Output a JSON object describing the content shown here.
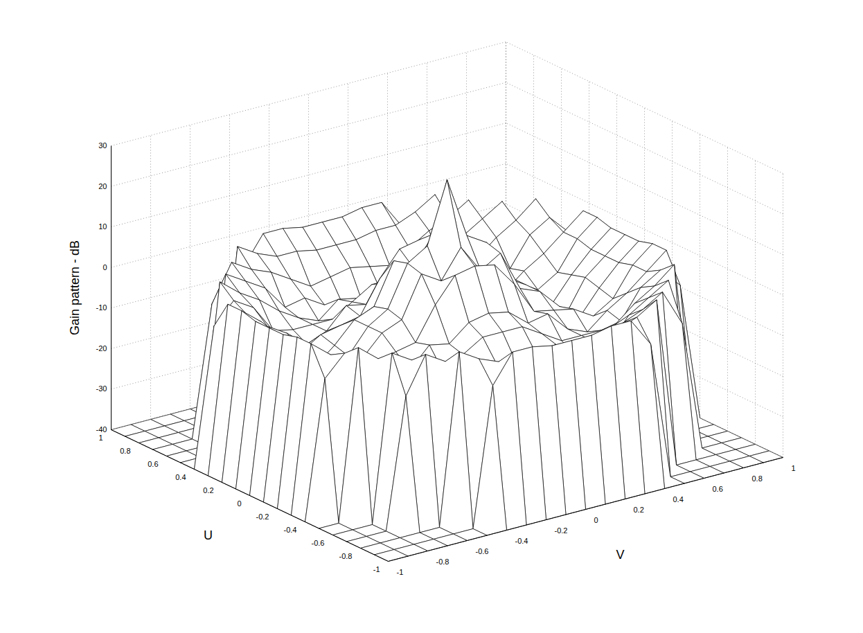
{
  "chart_data": {
    "type": "surface",
    "z_label": "Gain pattern - dB",
    "u_label": "U",
    "v_label": "V",
    "ulim": [
      -1,
      1
    ],
    "vlim": [
      -1,
      1
    ],
    "zlim": [
      -40,
      30
    ],
    "uticks": [
      -1,
      -0.8,
      -0.6,
      -0.4,
      -0.2,
      0,
      0.2,
      0.4,
      0.6,
      0.8,
      1
    ],
    "vticks": [
      -1,
      -0.8,
      -0.6,
      -0.4,
      -0.2,
      0,
      0.2,
      0.4,
      0.6,
      0.8,
      1
    ],
    "zticks": [
      -40,
      -30,
      -20,
      -10,
      0,
      10,
      20,
      30
    ],
    "grid": true,
    "color": "#000000",
    "u": [
      -1,
      -0.9,
      -0.8,
      -0.7,
      -0.6,
      -0.5,
      -0.4,
      -0.3,
      -0.2,
      -0.1,
      0,
      0.1,
      0.2,
      0.3,
      0.4,
      0.5,
      0.6,
      0.7,
      0.8,
      0.9,
      1
    ],
    "v": [
      -1,
      -0.9,
      -0.8,
      -0.7,
      -0.6,
      -0.5,
      -0.4,
      -0.3,
      -0.2,
      -0.1,
      0,
      0.1,
      0.2,
      0.3,
      0.4,
      0.5,
      0.6,
      0.7,
      0.8,
      0.9,
      1
    ],
    "gain": [
      [
        -40,
        -40,
        -40,
        -40,
        -40,
        -40,
        -40,
        -40,
        -40,
        -40,
        -40,
        -40,
        -40,
        -40,
        -40,
        -40,
        -40,
        -40,
        -40,
        -40,
        -40
      ],
      [
        -40,
        -40,
        -40,
        -40,
        -40,
        -40,
        -6,
        1,
        1,
        0,
        0,
        0,
        1,
        1,
        -6,
        -40,
        -40,
        -40,
        -40,
        -40,
        -40
      ],
      [
        -40,
        -40,
        -40,
        -40,
        -40,
        2,
        -1,
        -3,
        -3,
        -4,
        -4,
        -4,
        -3,
        -3,
        -1,
        2,
        -40,
        -40,
        -40,
        -40,
        -40
      ],
      [
        -40,
        -40,
        -40,
        -8,
        1,
        -2,
        -4,
        -7,
        -10,
        -9,
        -8,
        -9,
        -10,
        -7,
        -4,
        -2,
        1,
        -8,
        -40,
        -40,
        -40
      ],
      [
        -40,
        -40,
        -40,
        1,
        -2,
        -5,
        -11,
        -10,
        -13,
        -15,
        -16,
        -15,
        -13,
        -10,
        -11,
        -5,
        -2,
        1,
        -40,
        -40,
        -40
      ],
      [
        -40,
        -40,
        2,
        -2,
        -5,
        -9,
        -12,
        -14,
        -10,
        -11,
        -12,
        -11,
        -10,
        -14,
        -12,
        -9,
        -5,
        -2,
        2,
        -40,
        -40
      ],
      [
        -40,
        -6,
        -1,
        -4,
        -11,
        -12,
        -12,
        -12,
        -9,
        -6,
        -6,
        -6,
        -9,
        -12,
        -12,
        -12,
        -11,
        -4,
        -1,
        -6,
        -40
      ],
      [
        -40,
        1,
        -3,
        -7,
        -10,
        -14,
        -12,
        -7,
        -8,
        -4,
        -3,
        -4,
        -8,
        -7,
        -12,
        -14,
        -10,
        -7,
        -3,
        1,
        -40
      ],
      [
        -40,
        1,
        -3,
        -10,
        -13,
        -10,
        -9,
        -8,
        0,
        6,
        7,
        6,
        0,
        -8,
        -9,
        -10,
        -13,
        -10,
        -3,
        1,
        -40
      ],
      [
        -40,
        0,
        -4,
        -9,
        -15,
        -11,
        -6,
        -4,
        6,
        3,
        10,
        3,
        6,
        -4,
        -6,
        -11,
        -15,
        -9,
        -4,
        0,
        -40
      ],
      [
        -40,
        0,
        -4,
        -8,
        -16,
        -12,
        -6,
        -3,
        7,
        10,
        25,
        10,
        7,
        -3,
        -6,
        -12,
        -16,
        -8,
        -4,
        0,
        -40
      ],
      [
        -40,
        0,
        -4,
        -9,
        -15,
        -11,
        -6,
        -4,
        6,
        3,
        10,
        3,
        6,
        -4,
        -6,
        -11,
        -15,
        -9,
        -4,
        0,
        -40
      ],
      [
        -40,
        1,
        -3,
        -10,
        -13,
        -10,
        -9,
        -8,
        0,
        6,
        7,
        6,
        0,
        -8,
        -9,
        -10,
        -13,
        -10,
        -3,
        1,
        -40
      ],
      [
        -40,
        1,
        -3,
        -7,
        -10,
        -14,
        -12,
        -7,
        -8,
        -4,
        -3,
        -4,
        -8,
        -7,
        -12,
        -14,
        -10,
        -7,
        -3,
        1,
        -40
      ],
      [
        -40,
        -6,
        -1,
        -4,
        -11,
        -12,
        -12,
        -12,
        -9,
        -6,
        -6,
        -6,
        -9,
        -12,
        -12,
        -12,
        -11,
        -4,
        -1,
        -6,
        -40
      ],
      [
        -40,
        -40,
        2,
        -2,
        -5,
        -9,
        -12,
        -14,
        -10,
        -11,
        -12,
        -11,
        -10,
        -14,
        -12,
        -9,
        -5,
        -2,
        2,
        -40,
        -40
      ],
      [
        -40,
        -40,
        -40,
        1,
        -2,
        -5,
        -11,
        -10,
        -13,
        -15,
        -16,
        -15,
        -13,
        -10,
        -11,
        -5,
        -2,
        1,
        -40,
        -40,
        -40
      ],
      [
        -40,
        -40,
        -40,
        -8,
        1,
        -2,
        -4,
        -7,
        -10,
        -9,
        -8,
        -9,
        -10,
        -7,
        -4,
        -2,
        1,
        -8,
        -40,
        -40,
        -40
      ],
      [
        -40,
        -40,
        -40,
        -40,
        -40,
        2,
        -1,
        -3,
        -3,
        -4,
        -4,
        -4,
        -3,
        -3,
        -1,
        2,
        -40,
        -40,
        -40,
        -40,
        -40
      ],
      [
        -40,
        -40,
        -40,
        -40,
        -40,
        -40,
        -6,
        1,
        1,
        0,
        0,
        0,
        1,
        1,
        -6,
        -40,
        -40,
        -40,
        -40,
        -40,
        -40
      ],
      [
        -40,
        -40,
        -40,
        -40,
        -40,
        -40,
        -40,
        -40,
        -40,
        -40,
        -40,
        -40,
        -40,
        -40,
        -40,
        -40,
        -40,
        -40,
        -40,
        -40,
        -40
      ]
    ]
  }
}
